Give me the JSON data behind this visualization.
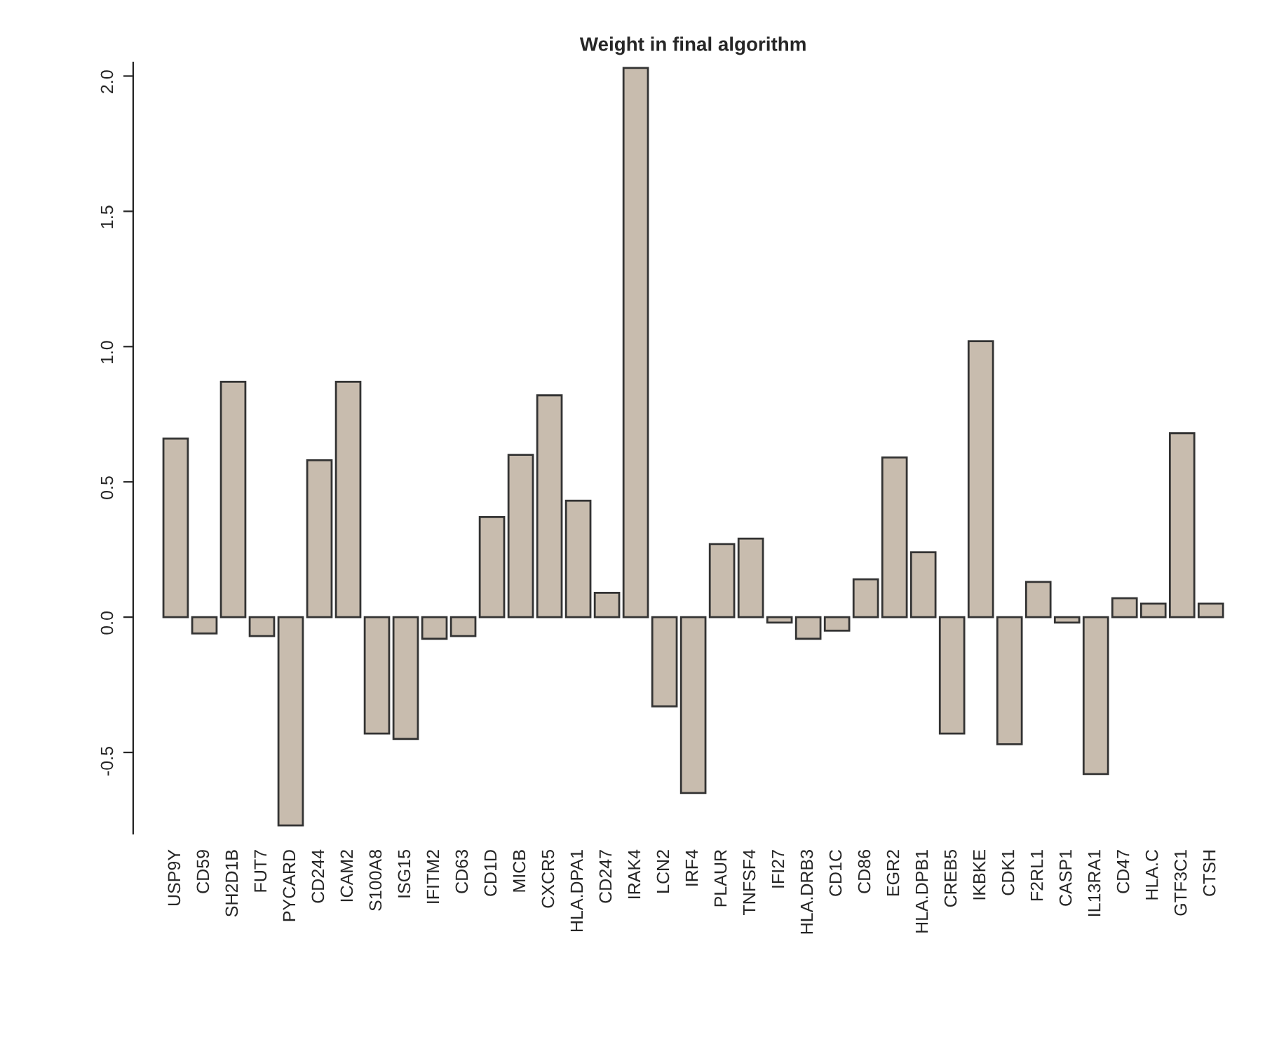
{
  "chart_data": {
    "type": "bar",
    "title": "Weight in final algorithm",
    "categories": [
      "USP9Y",
      "CD59",
      "SH2D1B",
      "FUT7",
      "PYCARD",
      "CD244",
      "ICAM2",
      "S100A8",
      "ISG15",
      "IFITM2",
      "CD63",
      "CD1D",
      "MICB",
      "CXCR5",
      "HLA.DPA1",
      "CD247",
      "IRAK4",
      "LCN2",
      "IRF4",
      "PLAUR",
      "TNFSF4",
      "IFI27",
      "HLA.DRB3",
      "CD1C",
      "CD86",
      "EGR2",
      "HLA.DPB1",
      "CREB5",
      "IKBKE",
      "CDK1",
      "F2RL1",
      "CASP1",
      "IL13RA1",
      "CD47",
      "HLA.C",
      "GTF3C1",
      "CTSH"
    ],
    "values": [
      0.66,
      -0.06,
      0.87,
      -0.07,
      -0.77,
      0.58,
      0.87,
      -0.43,
      -0.45,
      -0.08,
      -0.07,
      0.37,
      0.6,
      0.82,
      0.43,
      0.09,
      2.03,
      -0.33,
      -0.65,
      0.27,
      0.29,
      -0.02,
      -0.08,
      -0.05,
      0.14,
      0.59,
      0.24,
      -0.43,
      1.02,
      -0.47,
      0.13,
      -0.02,
      -0.58,
      0.07,
      0.05,
      0.68,
      0.05
    ],
    "color": "#c8bcae",
    "ylim": [
      -0.8,
      2.05
    ],
    "yticks": [
      -0.5,
      {
        "value": 0,
        "label": "0.0"
      },
      0.5,
      {
        "value": 1,
        "label": "1.0"
      },
      1.5,
      {
        "value": 2,
        "label": "2.0"
      }
    ],
    "grid": false,
    "legend": false
  }
}
